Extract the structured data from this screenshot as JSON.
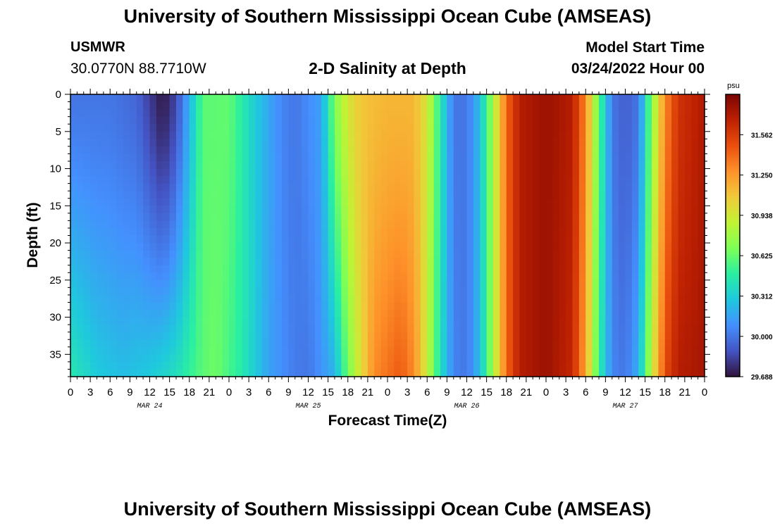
{
  "header": {
    "title": "University of Southern Mississippi Ocean Cube (AMSEAS)",
    "station": "USMWR",
    "coords": "30.0770N  88.7710W",
    "subtitle": "2-D Salinity at Depth",
    "start_label": "Model Start Time",
    "start_value": "03/24/2022 Hour 00"
  },
  "footer": {
    "title": "University of Southern Mississippi Ocean Cube (AMSEAS)"
  },
  "chart_data": {
    "type": "heatmap",
    "title": "2-D Salinity at Depth",
    "xlabel": "Forecast Time(Z)",
    "ylabel": "Depth (ft)",
    "x_hours_range": [
      0,
      96
    ],
    "x_tick_labels": [
      "0",
      "3",
      "6",
      "9",
      "12",
      "15",
      "18",
      "21",
      "0",
      "3",
      "6",
      "9",
      "12",
      "15",
      "18",
      "21",
      "0",
      "3",
      "6",
      "9",
      "12",
      "15",
      "18",
      "21",
      "0",
      "3",
      "6",
      "9",
      "12",
      "15",
      "18",
      "21",
      "0"
    ],
    "date_labels": [
      {
        "label": "MAR 24",
        "hour": 12
      },
      {
        "label": "MAR 25",
        "hour": 36
      },
      {
        "label": "MAR 26",
        "hour": 60
      },
      {
        "label": "MAR 27",
        "hour": 84
      }
    ],
    "y_range": [
      0,
      38
    ],
    "y_ticks": [
      0,
      5,
      10,
      15,
      20,
      25,
      30,
      35
    ],
    "colorbar": {
      "unit": "psu",
      "min": 29.688,
      "max": 31.875,
      "ticks": [
        29.688,
        30.0,
        30.312,
        30.625,
        30.938,
        31.25,
        31.562
      ],
      "tick_labels": [
        "29.688",
        "30.000",
        "30.312",
        "30.625",
        "30.938",
        "31.250",
        "31.562"
      ],
      "colors": [
        "#30123b",
        "#4454c4",
        "#4490fe",
        "#1fc8de",
        "#29efa2",
        "#7dff56",
        "#c1f334",
        "#f1ca3a",
        "#fe922a",
        "#ea4f0d",
        "#be2102",
        "#7a0403"
      ]
    },
    "surface_salinity_by_hour": [
      [
        0,
        30.0
      ],
      [
        6,
        30.0
      ],
      [
        10,
        29.95
      ],
      [
        12,
        29.82
      ],
      [
        14,
        29.7
      ],
      [
        16,
        29.85
      ],
      [
        18,
        30.2
      ],
      [
        20,
        30.6
      ],
      [
        24,
        30.62
      ],
      [
        28,
        30.3
      ],
      [
        32,
        30.05
      ],
      [
        34,
        30.0
      ],
      [
        38,
        30.15
      ],
      [
        40,
        30.7
      ],
      [
        42,
        30.95
      ],
      [
        44,
        31.1
      ],
      [
        48,
        31.15
      ],
      [
        52,
        31.15
      ],
      [
        54,
        30.95
      ],
      [
        56,
        30.45
      ],
      [
        58,
        30.0
      ],
      [
        60,
        30.0
      ],
      [
        62,
        30.25
      ],
      [
        64,
        30.8
      ],
      [
        66,
        31.4
      ],
      [
        68,
        31.7
      ],
      [
        72,
        31.78
      ],
      [
        76,
        31.7
      ],
      [
        78,
        31.3
      ],
      [
        80,
        30.6
      ],
      [
        82,
        30.0
      ],
      [
        84,
        29.92
      ],
      [
        86,
        30.0
      ],
      [
        88,
        30.7
      ],
      [
        90,
        31.3
      ],
      [
        92,
        31.6
      ],
      [
        96,
        31.72
      ]
    ],
    "bottom_salinity_by_hour": [
      [
        0,
        30.45
      ],
      [
        4,
        30.3
      ],
      [
        8,
        30.25
      ],
      [
        12,
        30.3
      ],
      [
        16,
        30.4
      ],
      [
        20,
        30.6
      ],
      [
        22,
        30.65
      ],
      [
        26,
        30.45
      ],
      [
        30,
        30.15
      ],
      [
        34,
        30.02
      ],
      [
        36,
        30.0
      ],
      [
        40,
        30.2
      ],
      [
        42,
        30.65
      ],
      [
        44,
        31.0
      ],
      [
        46,
        31.3
      ],
      [
        50,
        31.45
      ],
      [
        52,
        31.3
      ],
      [
        54,
        30.9
      ],
      [
        56,
        30.4
      ],
      [
        58,
        30.05
      ],
      [
        60,
        30.0
      ],
      [
        62,
        30.25
      ],
      [
        64,
        30.8
      ],
      [
        66,
        31.4
      ],
      [
        68,
        31.7
      ],
      [
        72,
        31.78
      ],
      [
        76,
        31.65
      ],
      [
        78,
        31.2
      ],
      [
        80,
        30.5
      ],
      [
        82,
        30.05
      ],
      [
        84,
        30.0
      ],
      [
        86,
        30.2
      ],
      [
        88,
        30.9
      ],
      [
        90,
        31.5
      ],
      [
        92,
        31.7
      ],
      [
        96,
        31.75
      ]
    ]
  }
}
